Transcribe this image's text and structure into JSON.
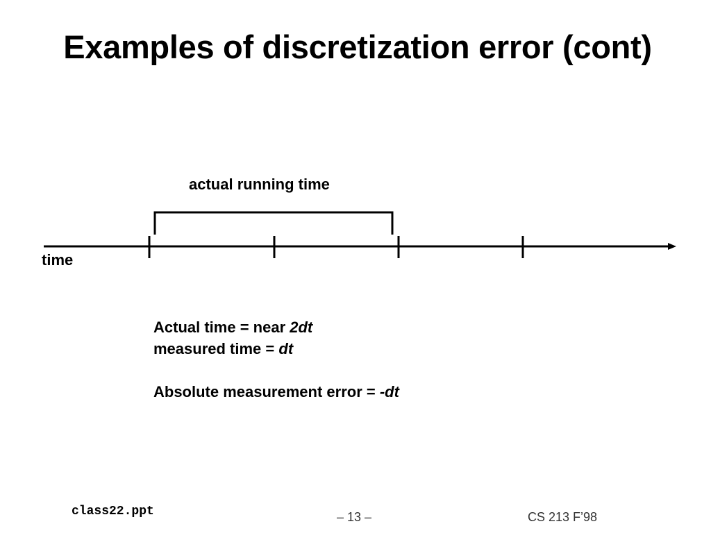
{
  "slide": {
    "title": "Examples of discretization error (cont)"
  },
  "diagram": {
    "bracket_label": "actual running time",
    "axis_label": "time",
    "ticks": 4,
    "bracket_span_ticks": 2
  },
  "notes": {
    "actual_prefix": "Actual time = near ",
    "actual_value": "2dt",
    "measured_prefix": "measured time = ",
    "measured_value": "dt",
    "error_prefix": "Absolute measurement error = ",
    "error_value": "-dt"
  },
  "footer": {
    "filename": "class22.ppt",
    "page": "– 13 –",
    "course": "CS 213 F’98"
  }
}
